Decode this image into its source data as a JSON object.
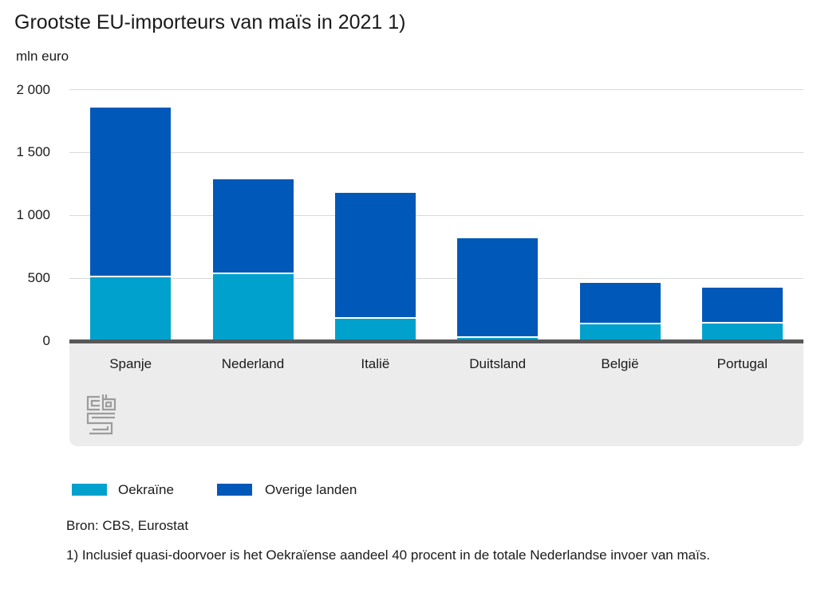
{
  "title": "Grootste EU-importeurs van maïs in 2021 1)",
  "unit_label": "mln euro",
  "chart_data": {
    "type": "bar",
    "stacked": true,
    "title": "Grootste EU-importeurs van maïs in 2021 1)",
    "xlabel": "",
    "ylabel": "mln euro",
    "ylim": [
      0,
      2000
    ],
    "grid": true,
    "legend_position": "bottom",
    "categories": [
      "Spanje",
      "Nederland",
      "Italië",
      "Duitsland",
      "België",
      "Portugal"
    ],
    "series": [
      {
        "name": "Oekraïne",
        "color": "#00a1cd",
        "values": [
          505,
          530,
          175,
          25,
          135,
          140
        ]
      },
      {
        "name": "Overige landen",
        "color": "#0058b8",
        "values": [
          1350,
          755,
          1005,
          790,
          330,
          285
        ]
      }
    ],
    "totals": [
      1855,
      1285,
      1180,
      815,
      465,
      425
    ],
    "yticks": [
      {
        "value": 0,
        "label": "0"
      },
      {
        "value": 500,
        "label": "500"
      },
      {
        "value": 1000,
        "label": "1 000"
      },
      {
        "value": 1500,
        "label": "1 500"
      },
      {
        "value": 2000,
        "label": "2 000"
      }
    ]
  },
  "footer": {
    "source": "Bron: CBS, Eurostat",
    "footnote": "1) Inclusief quasi-doorvoer is het Oekraïense aandeel 40 procent in de totale Nederlandse invoer van maïs."
  },
  "logo": {
    "name": "cbs-logo",
    "color": "#9c9c9c"
  },
  "colors": {
    "background": "#ffffff",
    "gridline": "#d9d9d9",
    "axis_line": "#58585a",
    "plot_footer_bg": "#ececec",
    "text": "#1a1a1a"
  }
}
